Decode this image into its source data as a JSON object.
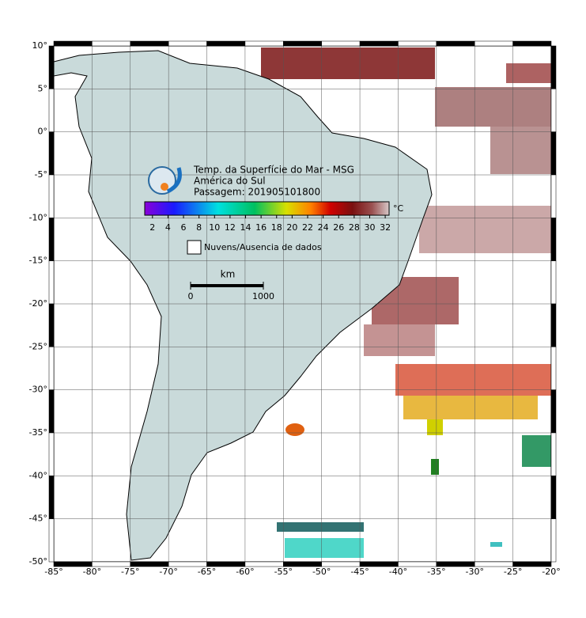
{
  "map": {
    "title": "Temp. da Superfície do Mar - MSG",
    "subtitle": "América do Sul",
    "pass": "Passagem: 201905101800",
    "xlim": [
      -85,
      -20
    ],
    "ylim": [
      -50,
      10
    ],
    "xticks": [
      {
        "value": -85,
        "label": "-85°"
      },
      {
        "value": -80,
        "label": "-80°"
      },
      {
        "value": -75,
        "label": "-75°"
      },
      {
        "value": -70,
        "label": "-70°"
      },
      {
        "value": -65,
        "label": "-65°"
      },
      {
        "value": -60,
        "label": "-60°"
      },
      {
        "value": -55,
        "label": "-55°"
      },
      {
        "value": -50,
        "label": "-50°"
      },
      {
        "value": -45,
        "label": "-45°"
      },
      {
        "value": -40,
        "label": "-40°"
      },
      {
        "value": -35,
        "label": "-35°"
      },
      {
        "value": -30,
        "label": "-30°"
      },
      {
        "value": -25,
        "label": "-25°"
      },
      {
        "value": -20,
        "label": "-20°"
      }
    ],
    "yticks": [
      {
        "value": 10,
        "label": "10°"
      },
      {
        "value": 5,
        "label": "5°"
      },
      {
        "value": 0,
        "label": "0°"
      },
      {
        "value": -5,
        "label": "-5°"
      },
      {
        "value": -10,
        "label": "-10°"
      },
      {
        "value": -15,
        "label": "-15°"
      },
      {
        "value": -20,
        "label": "-20°"
      },
      {
        "value": -25,
        "label": "-25°"
      },
      {
        "value": -30,
        "label": "-30°"
      },
      {
        "value": -35,
        "label": "-35°"
      },
      {
        "value": -40,
        "label": "-40°"
      },
      {
        "value": -45,
        "label": "-45°"
      },
      {
        "value": -50,
        "label": "-50°"
      }
    ],
    "colorbar": {
      "lim": [
        1,
        32.5
      ],
      "ticks": [
        2,
        4,
        6,
        8,
        10,
        12,
        14,
        16,
        18,
        20,
        22,
        24,
        26,
        28,
        30,
        32
      ],
      "unit": "°C"
    },
    "legend": "Nuvens/Ausencia de dados",
    "scale": {
      "unit": "km",
      "ticks": [
        0,
        1000
      ]
    }
  }
}
